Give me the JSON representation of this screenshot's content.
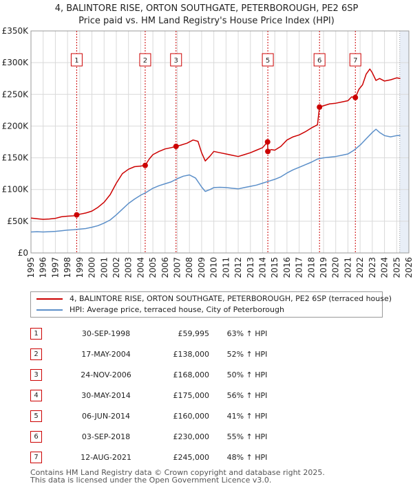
{
  "title_line1": "4, BALINTORE RISE, ORTON SOUTHGATE, PETERBOROUGH, PE2 6SP",
  "title_line2": "Price paid vs. HM Land Registry's House Price Index (HPI)",
  "colors": {
    "property": "#cc0000",
    "hpi": "#5b8fc9",
    "shade": "#e8eef7",
    "grid": "#d9d9d9"
  },
  "chart_data": {
    "type": "line",
    "xlim": [
      1995,
      2026
    ],
    "ylim": [
      0,
      350000
    ],
    "x_ticks": [
      1995,
      1996,
      1997,
      1998,
      1999,
      2000,
      2001,
      2002,
      2003,
      2004,
      2005,
      2006,
      2007,
      2008,
      2009,
      2010,
      2011,
      2012,
      2013,
      2014,
      2015,
      2016,
      2017,
      2018,
      2019,
      2020,
      2021,
      2022,
      2023,
      2024,
      2025,
      2026
    ],
    "y_ticks": [
      {
        "value": 0,
        "label": "£0"
      },
      {
        "value": 50000,
        "label": "£50K"
      },
      {
        "value": 100000,
        "label": "£100K"
      },
      {
        "value": 150000,
        "label": "£150K"
      },
      {
        "value": 200000,
        "label": "£200K"
      },
      {
        "value": 250000,
        "label": "£250K"
      },
      {
        "value": 300000,
        "label": "£300K"
      },
      {
        "value": 350000,
        "label": "£350K"
      }
    ],
    "shaded_from": 2025.25,
    "series": [
      {
        "name": "4, BALINTORE RISE, ORTON SOUTHGATE, PETERBOROUGH, PE2 6SP (terraced house)",
        "color": "#cc0000",
        "x": [
          1995,
          1995.5,
          1996,
          1996.5,
          1997,
          1997.5,
          1998,
          1998.5,
          1998.75,
          1999,
          1999.5,
          2000,
          2000.5,
          2001,
          2001.5,
          2002,
          2002.5,
          2003,
          2003.5,
          2004,
          2004.37,
          2004.7,
          2005,
          2005.5,
          2006,
          2006.5,
          2006.9,
          2007.3,
          2007.8,
          2008.3,
          2008.7,
          2009,
          2009.3,
          2009.7,
          2010,
          2010.5,
          2011,
          2011.5,
          2012,
          2012.5,
          2013,
          2013.5,
          2014,
          2014.41,
          2014.43,
          2014.7,
          2015,
          2015.5,
          2016,
          2016.5,
          2017,
          2017.5,
          2018,
          2018.5,
          2018.67,
          2019,
          2019.5,
          2020,
          2020.5,
          2021,
          2021.3,
          2021.61,
          2021.9,
          2022.2,
          2022.5,
          2022.8,
          2023,
          2023.3,
          2023.6,
          2024,
          2024.5,
          2025,
          2025.3
        ],
        "y": [
          55000,
          54000,
          53000,
          53500,
          54500,
          57000,
          58000,
          58500,
          59995,
          61000,
          63000,
          66000,
          72000,
          80000,
          92000,
          110000,
          125000,
          132000,
          136000,
          137000,
          138000,
          148000,
          155000,
          160000,
          164000,
          166000,
          168000,
          170000,
          173000,
          178000,
          176000,
          158000,
          145000,
          153000,
          160000,
          158000,
          156000,
          154000,
          152000,
          155000,
          158000,
          162000,
          166000,
          175000,
          160000,
          163000,
          162000,
          168000,
          178000,
          183000,
          186000,
          191000,
          197000,
          202000,
          230000,
          232000,
          235000,
          236000,
          238000,
          240000,
          246000,
          245000,
          258000,
          265000,
          282000,
          290000,
          284000,
          272000,
          275000,
          271000,
          273000,
          276000,
          275000
        ]
      },
      {
        "name": "HPI: Average price, terraced house, City of Peterborough",
        "color": "#5b8fc9",
        "x": [
          1995,
          1995.5,
          1996,
          1996.5,
          1997,
          1997.5,
          1998,
          1998.5,
          1999,
          1999.5,
          2000,
          2000.5,
          2001,
          2001.5,
          2002,
          2002.5,
          2003,
          2003.5,
          2004,
          2004.5,
          2005,
          2005.5,
          2006,
          2006.5,
          2007,
          2007.5,
          2008,
          2008.5,
          2009,
          2009.3,
          2009.7,
          2010,
          2010.5,
          2011,
          2011.5,
          2012,
          2012.5,
          2013,
          2013.5,
          2014,
          2014.5,
          2015,
          2015.5,
          2016,
          2016.5,
          2017,
          2017.5,
          2018,
          2018.5,
          2019,
          2019.5,
          2020,
          2020.5,
          2021,
          2021.5,
          2022,
          2022.5,
          2023,
          2023.3,
          2023.6,
          2024,
          2024.5,
          2025,
          2025.3
        ],
        "y": [
          33000,
          33500,
          33000,
          33500,
          34000,
          35000,
          36000,
          36500,
          37500,
          38500,
          40500,
          43000,
          47000,
          52000,
          60000,
          69000,
          78000,
          85000,
          91000,
          96000,
          102000,
          106000,
          109000,
          112000,
          117000,
          121000,
          123000,
          118000,
          104000,
          97000,
          100000,
          103000,
          103500,
          103000,
          102000,
          101000,
          103000,
          105000,
          107000,
          110000,
          113000,
          116000,
          120000,
          126000,
          131000,
          135000,
          139000,
          143000,
          148000,
          150000,
          151000,
          152000,
          154000,
          156000,
          162000,
          170000,
          180000,
          190000,
          195000,
          190000,
          185000,
          183000,
          185000,
          185000
        ]
      }
    ],
    "sales": [
      {
        "label": "1",
        "date": "30-SEP-1998",
        "x": 1998.75,
        "price": 59995,
        "price_label": "£59,995",
        "hpi": "63% ↑ HPI"
      },
      {
        "label": "2",
        "date": "17-MAY-2004",
        "x": 2004.37,
        "price": 138000,
        "price_label": "£138,000",
        "hpi": "52% ↑ HPI"
      },
      {
        "label": "3",
        "date": "24-NOV-2006",
        "x": 2006.9,
        "price": 168000,
        "price_label": "£168,000",
        "hpi": "50% ↑ HPI"
      },
      {
        "label": "4",
        "date": "30-MAY-2014",
        "x": 2014.41,
        "price": 175000,
        "price_label": "£175,000",
        "hpi": "56% ↑ HPI"
      },
      {
        "label": "5",
        "date": "06-JUN-2014",
        "x": 2014.43,
        "price": 160000,
        "price_label": "£160,000",
        "hpi": "41% ↑ HPI"
      },
      {
        "label": "6",
        "date": "03-SEP-2018",
        "x": 2018.67,
        "price": 230000,
        "price_label": "£230,000",
        "hpi": "55% ↑ HPI"
      },
      {
        "label": "7",
        "date": "12-AUG-2021",
        "x": 2021.61,
        "price": 245000,
        "price_label": "£245,000",
        "hpi": "48% ↑ HPI"
      }
    ],
    "chart_markers": [
      "1",
      "2",
      "3",
      "5",
      "6",
      "7"
    ]
  },
  "legend": {
    "property_label": "4, BALINTORE RISE, ORTON SOUTHGATE, PETERBOROUGH, PE2 6SP (terraced house)",
    "hpi_label": "HPI: Average price, terraced house, City of Peterborough"
  },
  "footer": {
    "line1": "Contains HM Land Registry data © Crown copyright and database right 2025.",
    "line2": "This data is licensed under the Open Government Licence v3.0."
  }
}
